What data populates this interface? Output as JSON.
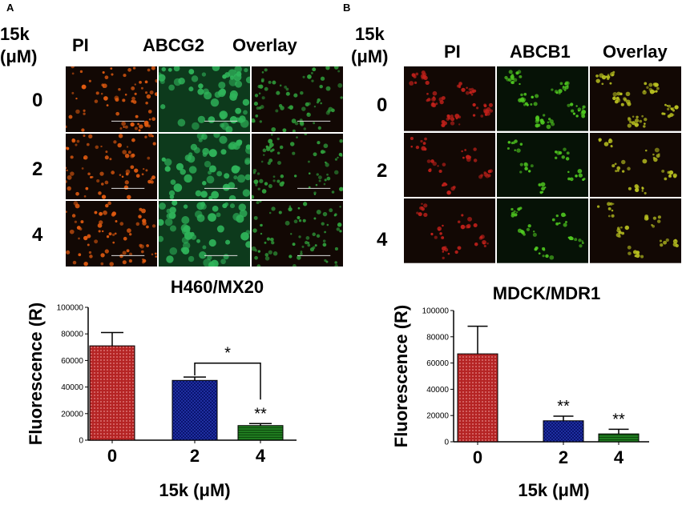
{
  "panels": [
    {
      "id": "A",
      "letter": "A",
      "conc_label": "15k",
      "conc_unit": "(μM)",
      "columns": [
        "PI",
        "ABCG2",
        "Overlay"
      ],
      "rows": [
        "0",
        "2",
        "4"
      ],
      "cell_title": "H460/MX20",
      "colors": {
        "PI": "#e05a10",
        "stain": "#2fb45a",
        "overlay": "#2f9c3a"
      },
      "chart_data": {
        "type": "bar",
        "categories": [
          "0",
          "2",
          "4"
        ],
        "values": [
          71000,
          45000,
          11000
        ],
        "errors": [
          10000,
          2500,
          1500
        ],
        "ylabel": "Fluorescence (R)",
        "xlabel": "15k (μM)",
        "ylim": [
          0,
          100000
        ],
        "yticks": [
          "0",
          "20000",
          "40000",
          "60000",
          "80000",
          "100000"
        ],
        "bar_colors": [
          "#b52424",
          "#1f2fa0",
          "#1f7a1f"
        ],
        "bar_patterns": [
          "dots",
          "checks",
          "stripes"
        ],
        "annotations": [
          "**"
        ],
        "bracket": {
          "from": "2",
          "to": "4",
          "label": "*"
        }
      }
    },
    {
      "id": "B",
      "letter": "B",
      "conc_label": "15k",
      "conc_unit": "(μM)",
      "columns": [
        "PI",
        "ABCB1",
        "Overlay"
      ],
      "rows": [
        "0",
        "2",
        "4"
      ],
      "cell_title": "MDCK/MDR1",
      "colors": {
        "PI": "#c0201a",
        "stain": "#4fc820",
        "overlay": "#b8c020"
      },
      "chart_data": {
        "type": "bar",
        "categories": [
          "0",
          "2",
          "4"
        ],
        "values": [
          67000,
          16000,
          6000
        ],
        "errors": [
          21000,
          3500,
          3500
        ],
        "ylabel": "Fluorescence (R)",
        "xlabel": "15k (μM)",
        "ylim": [
          0,
          100000
        ],
        "yticks": [
          "0",
          "20000",
          "40000",
          "60000",
          "80000",
          "100000"
        ],
        "bar_colors": [
          "#b52424",
          "#1f2fa0",
          "#1f7a1f"
        ],
        "bar_patterns": [
          "dots",
          "checks",
          "stripes"
        ],
        "annotations": [
          "**",
          "**"
        ]
      }
    }
  ]
}
